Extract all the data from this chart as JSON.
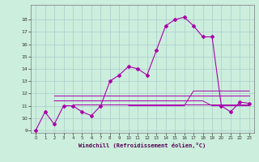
{
  "xlabel": "Windchill (Refroidissement éolien,°C)",
  "bg_color": "#cceedd",
  "grid_color": "#aacccc",
  "line_color": "#aa00aa",
  "xlim": [
    -0.5,
    23.5
  ],
  "ylim": [
    8.8,
    19.2
  ],
  "yticks": [
    9,
    10,
    11,
    12,
    13,
    14,
    15,
    16,
    17,
    18
  ],
  "xticks": [
    0,
    1,
    2,
    3,
    4,
    5,
    6,
    7,
    8,
    9,
    10,
    11,
    12,
    13,
    14,
    15,
    16,
    17,
    18,
    19,
    20,
    21,
    22,
    23
  ],
  "main_x": [
    0,
    1,
    2,
    3,
    4,
    5,
    6,
    7,
    8,
    9,
    10,
    11,
    12,
    13,
    14,
    15,
    16,
    17,
    18,
    19,
    20,
    21,
    22,
    23
  ],
  "main_y": [
    9,
    10.5,
    9.5,
    11,
    11,
    10.5,
    10.2,
    11,
    13,
    13.5,
    14.2,
    14.0,
    13.5,
    15.5,
    17.5,
    18.0,
    18.2,
    17.5,
    16.6,
    16.6,
    11.0,
    10.5,
    11.3,
    11.2
  ],
  "ref1_x": [
    2,
    3,
    4,
    5,
    6,
    7,
    8,
    9,
    10,
    11,
    12,
    13,
    14,
    15,
    16,
    17,
    18,
    19,
    20,
    21,
    22,
    23
  ],
  "ref1_y": [
    11.8,
    11.8,
    11.8,
    11.8,
    11.8,
    11.8,
    11.8,
    11.8,
    11.8,
    11.8,
    11.8,
    11.8,
    11.8,
    11.8,
    11.8,
    11.8,
    11.8,
    11.8,
    11.8,
    11.8,
    11.8,
    11.8
  ],
  "ref2_x": [
    2,
    3,
    4,
    5,
    6,
    7,
    8,
    9,
    10,
    11,
    12,
    13,
    14,
    15,
    16,
    17,
    18,
    19,
    20,
    21,
    22,
    23
  ],
  "ref2_y": [
    11.4,
    11.4,
    11.4,
    11.4,
    11.4,
    11.4,
    11.4,
    11.4,
    11.4,
    11.4,
    11.4,
    11.4,
    11.4,
    11.4,
    11.4,
    11.4,
    11.4,
    11.0,
    11.0,
    11.0,
    11.0,
    11.0
  ],
  "ref3_x": [
    4,
    5,
    6,
    7,
    8,
    9,
    10,
    11,
    12,
    13,
    14,
    15,
    16,
    17,
    18,
    19,
    20,
    21,
    22,
    23
  ],
  "ref3_y": [
    11.1,
    11.1,
    11.1,
    11.1,
    11.1,
    11.1,
    11.1,
    11.1,
    11.1,
    11.1,
    11.1,
    11.1,
    11.1,
    11.1,
    11.1,
    11.1,
    11.1,
    11.1,
    11.1,
    11.1
  ],
  "ref4_x": [
    10,
    11,
    12,
    13,
    14,
    15,
    16,
    17,
    18,
    19,
    20,
    21,
    22,
    23
  ],
  "ref4_y": [
    11.0,
    11.0,
    11.0,
    11.0,
    11.0,
    11.0,
    11.0,
    12.2,
    12.2,
    12.2,
    12.2,
    12.2,
    12.2,
    12.2
  ]
}
